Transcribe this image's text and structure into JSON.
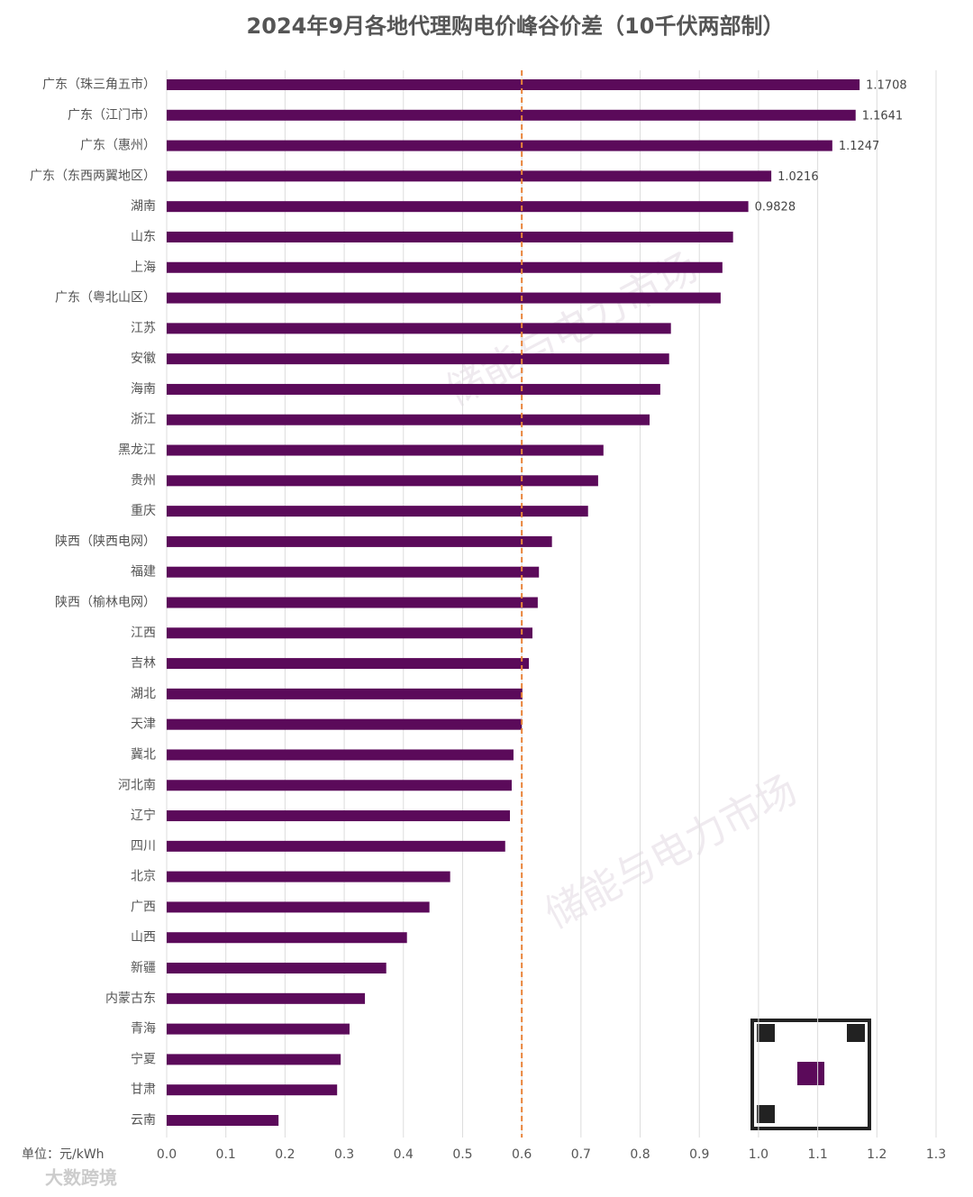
{
  "chart_data": {
    "type": "hbar",
    "title": "2024年9月各地代理购电价峰谷价差（10千伏两部制）",
    "unit_label": "单位：元/kWh",
    "watermark": "储能与电力市场",
    "footer": "大数跨境",
    "categories": [
      "广东（珠三角五市）",
      "广东（江门市）",
      "广东（惠州）",
      "广东（东西两翼地区）",
      "湖南",
      "山东",
      "上海",
      "广东（粤北山区）",
      "江苏",
      "安徽",
      "海南",
      "浙江",
      "黑龙江",
      "贵州",
      "重庆",
      "陕西（陕西电网）",
      "福建",
      "陕西（榆林电网）",
      "江西",
      "吉林",
      "湖北",
      "天津",
      "冀北",
      "河北南",
      "辽宁",
      "四川",
      "北京",
      "广西",
      "山西",
      "新疆",
      "内蒙古东",
      "青海",
      "宁夏",
      "甘肃",
      "云南"
    ],
    "values": [
      1.1708,
      1.1641,
      1.1247,
      1.0216,
      0.9828,
      0.957,
      0.939,
      0.936,
      0.852,
      0.849,
      0.834,
      0.816,
      0.738,
      0.729,
      0.712,
      0.651,
      0.629,
      0.627,
      0.618,
      0.612,
      0.601,
      0.6,
      0.586,
      0.583,
      0.58,
      0.572,
      0.479,
      0.444,
      0.406,
      0.371,
      0.335,
      0.309,
      0.294,
      0.288,
      0.189
    ],
    "value_labels": [
      "1.1708",
      "1.1641",
      "1.1247",
      "1.0216",
      "0.9828",
      null,
      null,
      null,
      null,
      null,
      null,
      null,
      null,
      null,
      null,
      null,
      null,
      null,
      null,
      null,
      null,
      null,
      null,
      null,
      null,
      null,
      null,
      null,
      null,
      null,
      null,
      null,
      null,
      null,
      null
    ],
    "color": "#5b0a5a",
    "reference_line": 0.6,
    "reference_color": "#e8843a",
    "xlim": [
      0,
      1.3
    ],
    "xticks": [
      {
        "value": 0,
        "label": "0.0"
      },
      0.1,
      0.2,
      0.3,
      0.4,
      0.5,
      0.6,
      0.7,
      0.8,
      0.9,
      {
        "value": 1,
        "label": "1.0"
      },
      1.1,
      1.2,
      1.3
    ],
    "grid": true
  }
}
